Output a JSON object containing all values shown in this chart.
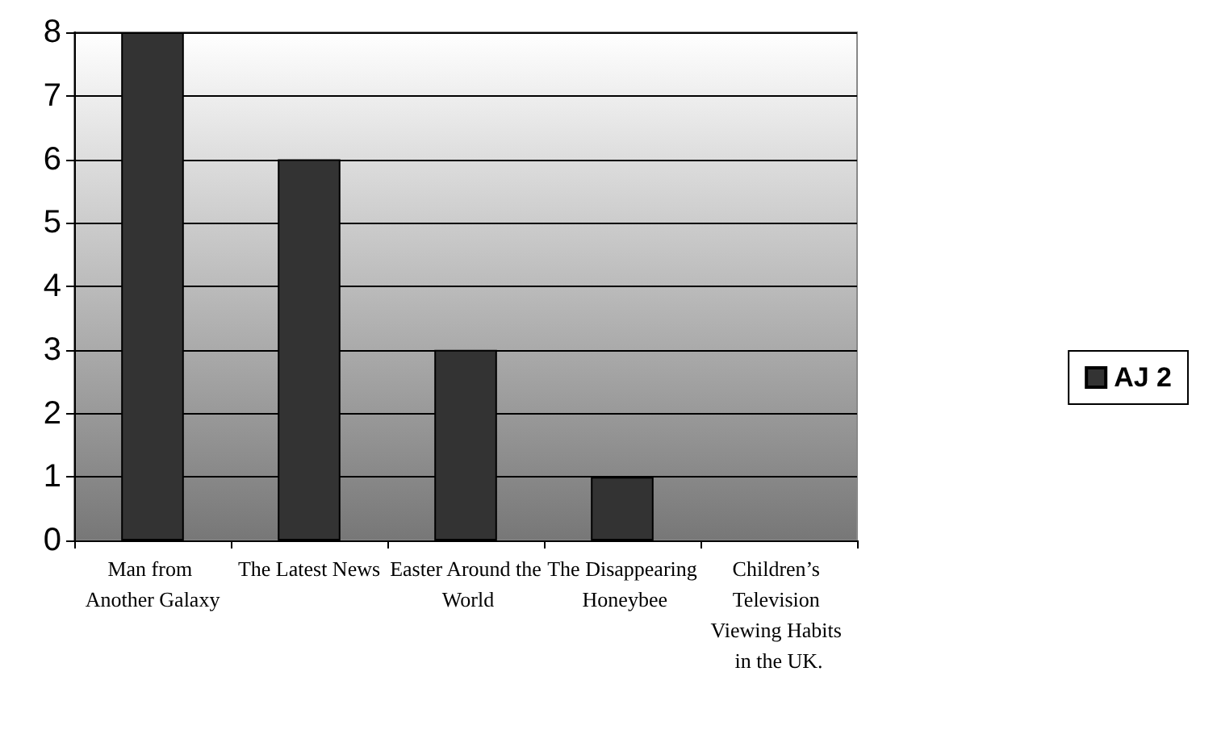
{
  "chart_data": {
    "type": "bar",
    "categories": [
      "Man from Another Galaxy",
      "The Latest News",
      "Easter Around the World",
      "The Disappearing Honeybee",
      "Children’s Television Viewing Habits in the UK."
    ],
    "series": [
      {
        "name": "AJ 2",
        "color": "#333333",
        "values": [
          8,
          6,
          3,
          1,
          0
        ]
      }
    ],
    "ylim": [
      0,
      8
    ],
    "yticks": [
      0,
      1,
      2,
      3,
      4,
      5,
      6,
      7,
      8
    ],
    "grid": "y",
    "legend": "right"
  }
}
